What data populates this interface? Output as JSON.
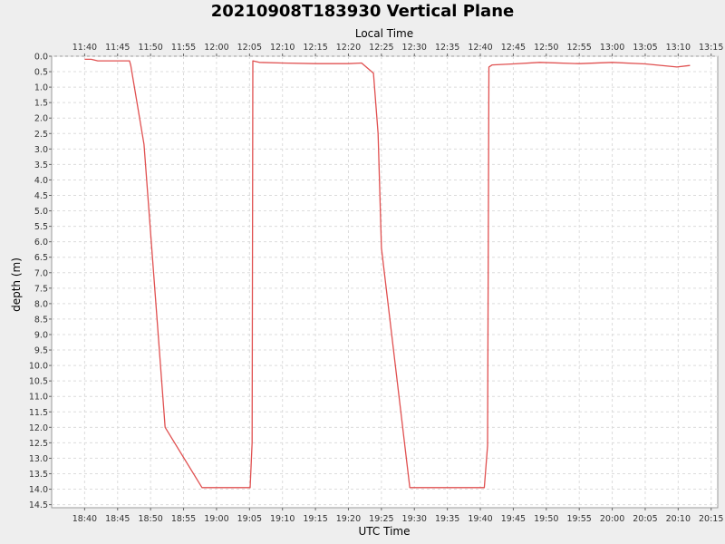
{
  "chart_data": {
    "type": "line",
    "title": "20210908T183930 Vertical Plane",
    "xlabel": "UTC Time",
    "x2label": "Local Time",
    "ylabel": "depth (m)",
    "x_unit": "minutes of day (UTC)",
    "xlim": [
      "18:35",
      "20:16"
    ],
    "ylim": [
      0.0,
      14.6
    ],
    "y_inverted": true,
    "grid": true,
    "local_time_offset": "-07:00",
    "x_ticks": [
      "18:40",
      "18:45",
      "18:50",
      "18:55",
      "19:00",
      "19:05",
      "19:10",
      "19:15",
      "19:20",
      "19:25",
      "19:30",
      "19:35",
      "19:40",
      "19:45",
      "19:50",
      "19:55",
      "20:00",
      "20:05",
      "20:10",
      "20:15"
    ],
    "x2_ticks": [
      "11:40",
      "11:45",
      "11:50",
      "11:55",
      "12:00",
      "12:05",
      "12:10",
      "12:15",
      "12:20",
      "12:25",
      "12:30",
      "12:35",
      "12:40",
      "12:45",
      "12:50",
      "12:55",
      "13:00",
      "13:05",
      "13:10",
      "13:15"
    ],
    "y_ticks": [
      "0.0",
      "0.5",
      "1.0",
      "1.5",
      "2.0",
      "2.5",
      "3.0",
      "3.5",
      "4.0",
      "4.5",
      "5.0",
      "5.5",
      "6.0",
      "6.5",
      "7.0",
      "7.5",
      "8.0",
      "8.5",
      "9.0",
      "9.5",
      "10.0",
      "10.5",
      "11.0",
      "11.5",
      "12.0",
      "12.5",
      "13.0",
      "13.5",
      "14.0",
      "14.5"
    ],
    "series": [
      {
        "name": "",
        "color": "#e05050",
        "points": [
          [
            "18:40:00",
            0.1
          ],
          [
            "18:41:00",
            0.1
          ],
          [
            "18:42:00",
            0.15
          ],
          [
            "18:44:00",
            0.15
          ],
          [
            "18:46:48",
            0.15
          ],
          [
            "18:47:00",
            0.3
          ],
          [
            "18:49:00",
            2.85
          ],
          [
            "18:52:12",
            12.0
          ],
          [
            "18:57:48",
            13.95
          ],
          [
            "19:05:06",
            13.95
          ],
          [
            "19:05:24",
            12.5
          ],
          [
            "19:05:30",
            0.15
          ],
          [
            "19:06:30",
            0.2
          ],
          [
            "19:10:00",
            0.22
          ],
          [
            "19:15:00",
            0.24
          ],
          [
            "19:20:00",
            0.24
          ],
          [
            "19:22:00",
            0.22
          ],
          [
            "19:23:48",
            0.55
          ],
          [
            "19:24:30",
            2.5
          ],
          [
            "19:25:00",
            6.2
          ],
          [
            "19:29:18",
            13.95
          ],
          [
            "19:40:36",
            13.95
          ],
          [
            "19:41:06",
            12.6
          ],
          [
            "19:41:18",
            0.35
          ],
          [
            "19:41:48",
            0.28
          ],
          [
            "19:45:00",
            0.25
          ],
          [
            "19:49:00",
            0.2
          ],
          [
            "19:55:00",
            0.24
          ],
          [
            "20:00:00",
            0.2
          ],
          [
            "20:05:00",
            0.25
          ],
          [
            "20:09:48",
            0.35
          ],
          [
            "20:11:48",
            0.3
          ]
        ]
      }
    ]
  }
}
